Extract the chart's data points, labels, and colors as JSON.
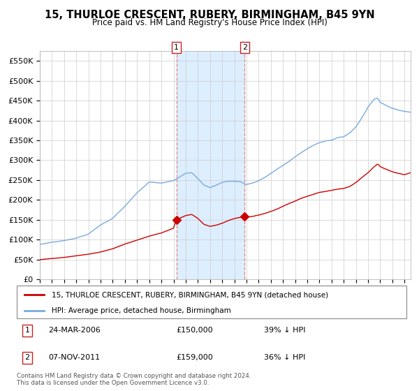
{
  "title": "15, THURLOE CRESCENT, RUBERY, BIRMINGHAM, B45 9YN",
  "subtitle": "Price paid vs. HM Land Registry's House Price Index (HPI)",
  "legend_line1": "15, THURLOE CRESCENT, RUBERY, BIRMINGHAM, B45 9YN (detached house)",
  "legend_line2": "HPI: Average price, detached house, Birmingham",
  "transaction1_date": "24-MAR-2006",
  "transaction1_price": "£150,000",
  "transaction1_hpi": "39% ↓ HPI",
  "transaction2_date": "07-NOV-2011",
  "transaction2_price": "£159,000",
  "transaction2_hpi": "36% ↓ HPI",
  "footnote": "Contains HM Land Registry data © Crown copyright and database right 2024.\nThis data is licensed under the Open Government Licence v3.0.",
  "ylim": [
    0,
    575000
  ],
  "yticks": [
    0,
    50000,
    100000,
    150000,
    200000,
    250000,
    300000,
    350000,
    400000,
    450000,
    500000,
    550000
  ],
  "background_color": "#ffffff",
  "grid_color": "#cccccc",
  "hpi_color": "#7aaadd",
  "price_color": "#cc0000",
  "highlight_color": "#ddeeff",
  "vline_color": "#dd8888",
  "transaction1_x": 2006.23,
  "transaction2_x": 2011.85,
  "transaction1_y": 150000,
  "transaction2_y": 159000,
  "xmin": 1995,
  "xmax": 2025.5
}
